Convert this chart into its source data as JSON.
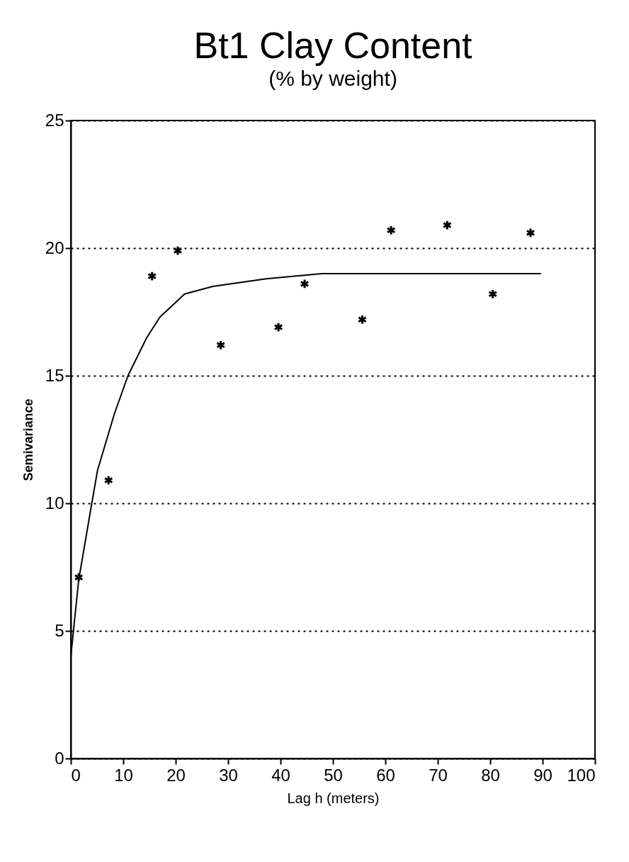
{
  "chart_data": {
    "type": "scatter",
    "title": "Bt1 Clay Content",
    "subtitle": "(% by weight)",
    "xlabel": "Lag h (meters)",
    "ylabel": "Semivariance",
    "xlim": [
      0,
      100
    ],
    "xticks": [
      0,
      10,
      20,
      30,
      40,
      50,
      60,
      70,
      80,
      90,
      100
    ],
    "ylim": [
      0,
      25
    ],
    "yticks": [
      0,
      5,
      10,
      15,
      20,
      25
    ],
    "grid": "y",
    "series": [
      {
        "marker": "cross",
        "color": "#000000",
        "x": [
          1.5,
          7.2,
          15.5,
          20.4,
          28.6,
          39.6,
          44.6,
          55.6,
          61.1,
          71.8,
          80.5,
          87.7
        ],
        "values": [
          7.1,
          10.9,
          18.9,
          19.9,
          16.2,
          16.9,
          18.6,
          17.2,
          20.7,
          20.9,
          18.2,
          20.6
        ]
      },
      {
        "type": "line",
        "color": "#000000",
        "line_style": "solid",
        "marker": "none",
        "x": [
          0,
          1.5,
          4,
          5.1,
          8.3,
          10.9,
          14.5,
          17,
          21.7,
          27.1,
          37.3,
          47.9,
          60,
          75,
          89.7
        ],
        "values": [
          4.0,
          7.0,
          10.0,
          11.3,
          13.5,
          15.0,
          16.5,
          17.3,
          18.2,
          18.5,
          18.8,
          19.0,
          19.0,
          19.0,
          19.0
        ]
      }
    ]
  }
}
